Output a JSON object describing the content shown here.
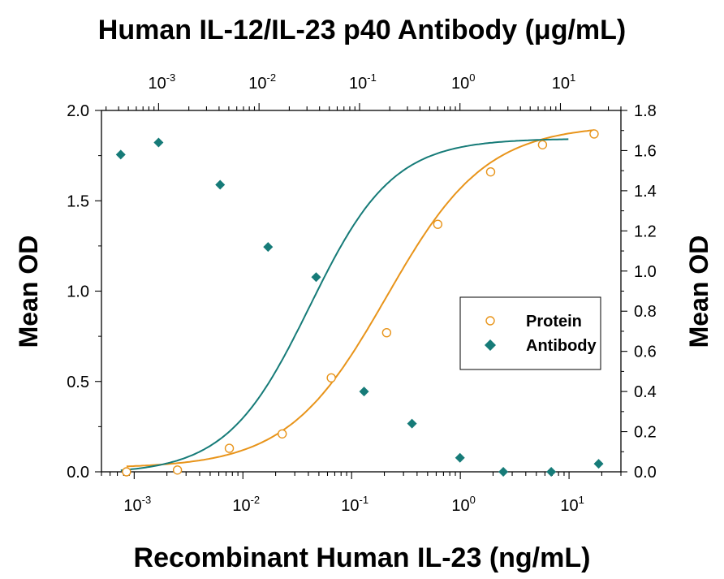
{
  "chart_data": {
    "type": "scatter",
    "title_top": "Human IL-12/IL-23 p40 Antibody (μg/mL)",
    "xlabel": "Recombinant Human IL-23 (ng/mL)",
    "ylabel_left": "Mean OD",
    "ylabel_right": "Mean OD",
    "x_scale": "log",
    "x_bottom_range": [
      0.0005,
      30
    ],
    "x_bottom_ticks": [
      {
        "base": "10",
        "exp": "-3",
        "value": 0.001
      },
      {
        "base": "10",
        "exp": "-2",
        "value": 0.01
      },
      {
        "base": "10",
        "exp": "-1",
        "value": 0.1
      },
      {
        "base": "10",
        "exp": "0",
        "value": 1
      },
      {
        "base": "10",
        "exp": "1",
        "value": 10
      }
    ],
    "x_top_range": [
      0.00027,
      40
    ],
    "x_top_ticks": [
      {
        "base": "10",
        "exp": "-3",
        "value": 0.001
      },
      {
        "base": "10",
        "exp": "-2",
        "value": 0.01
      },
      {
        "base": "10",
        "exp": "-1",
        "value": 0.1
      },
      {
        "base": "10",
        "exp": "0",
        "value": 1
      },
      {
        "base": "10",
        "exp": "1",
        "value": 10
      }
    ],
    "y_left_range": [
      0,
      2.0
    ],
    "y_left_ticks": [
      "0.0",
      "0.5",
      "1.0",
      "1.5",
      "2.0"
    ],
    "y_right_range": [
      0,
      1.8
    ],
    "y_right_ticks": [
      "0.0",
      "0.2",
      "0.4",
      "0.6",
      "0.8",
      "1.0",
      "1.2",
      "1.4",
      "1.6",
      "1.8"
    ],
    "legend_position": "right-middle",
    "series": [
      {
        "name": "Protein",
        "axis": "bottom-left",
        "color": "#E8941A",
        "marker": "open-circle",
        "x": [
          0.00085,
          0.0025,
          0.0075,
          0.023,
          0.065,
          0.21,
          0.62,
          1.9,
          5.7,
          17
        ],
        "y": [
          0.0,
          0.01,
          0.13,
          0.21,
          0.52,
          0.77,
          1.37,
          1.66,
          1.81,
          1.87
        ],
        "fit": {
          "bottom": 0.02,
          "top": 1.92,
          "ec50": 0.21,
          "hill": 0.95
        }
      },
      {
        "name": "Antibody",
        "axis": "top-right",
        "color": "#167B78",
        "marker": "filled-diamond",
        "x": [
          0.00042,
          0.001,
          0.0041,
          0.0123,
          0.037,
          0.111,
          0.333,
          1.0,
          2.7,
          8.1,
          24
        ],
        "y": [
          1.58,
          1.64,
          1.43,
          1.12,
          0.97,
          0.4,
          0.24,
          0.07,
          0.0,
          0.0,
          0.04
        ],
        "fit": {
          "bottom": -0.01,
          "top": 1.66,
          "ec50": 0.032,
          "hill": 1.05
        }
      }
    ]
  }
}
